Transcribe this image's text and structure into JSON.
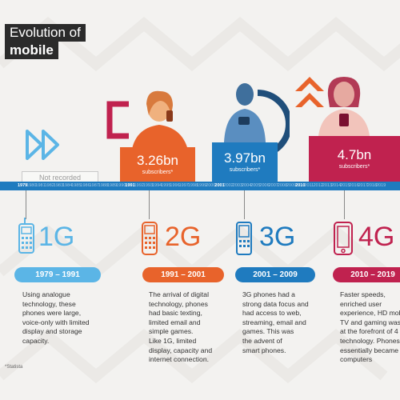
{
  "title": {
    "line1": "Evolution of",
    "line2": "mobile"
  },
  "not_recorded": "Not recorded",
  "timeline": {
    "years": [
      "1979",
      "1980",
      "1981",
      "1982",
      "1983",
      "1984",
      "1985",
      "1986",
      "1987",
      "1988",
      "1989",
      "1990",
      "1991",
      "1992",
      "1993",
      "1994",
      "1995",
      "1996",
      "1997",
      "1998",
      "1999",
      "2000",
      "2001",
      "2002",
      "2003",
      "2004",
      "2005",
      "2006",
      "2007",
      "2008",
      "2009",
      "2010",
      "2011",
      "2012",
      "2013",
      "2014",
      "2015",
      "2016",
      "2017",
      "2018",
      "2019"
    ],
    "major_years": [
      "1979",
      "1991",
      "2001",
      "2010"
    ]
  },
  "stats": [
    {
      "value": "3.26bn",
      "label": "subscribers*",
      "color": "#e8632b"
    },
    {
      "value": "3.97bn",
      "label": "subscribers*",
      "color": "#1f7bbf"
    },
    {
      "value": "4.7bn",
      "label": "subscribers*",
      "color": "#c0224f"
    }
  ],
  "eras": [
    {
      "gen": "1G",
      "range": "1979 – 1991",
      "color": "#5bb5e6",
      "lines": [
        "Using analogue",
        "technology, these",
        "phones were large,",
        "voice-only with limited",
        "display and storage",
        "capacity."
      ]
    },
    {
      "gen": "2G",
      "range": "1991 – 2001",
      "color": "#e8632b",
      "lines": [
        "The arrival of digital",
        "technology, phones",
        "had basic texting,",
        "limited email and",
        "simple games.",
        "Like 1G, limited",
        "display, capacity and",
        "internet connection."
      ]
    },
    {
      "gen": "3G",
      "range": "2001 – 2009",
      "color": "#1f7bbf",
      "lines": [
        "3G phones had a",
        "strong data focus and",
        "had access to web,",
        "streaming, email and",
        "games. This was",
        "the advent of",
        "smart phones."
      ]
    },
    {
      "gen": "4G",
      "range": "2010 – 2019",
      "color": "#c0224f",
      "lines": [
        "Faster speeds,",
        "enriched user",
        "experience, HD mob",
        "TV and gaming was",
        "at the forefront of 4",
        "technology. Phones",
        "essentially became",
        "computers"
      ]
    }
  ],
  "footnote": "*Statista",
  "colors": {
    "blue": "#1f7bbf",
    "orange": "#e8632b",
    "crimson": "#c0224f",
    "light_blue": "#5bb5e6",
    "dark": "#2b2b2b"
  },
  "icons": [
    "fast-forward-icon",
    "feature-phone-1g-icon",
    "feature-phone-2g-icon",
    "feature-phone-3g-icon",
    "smartphone-4g-icon"
  ]
}
